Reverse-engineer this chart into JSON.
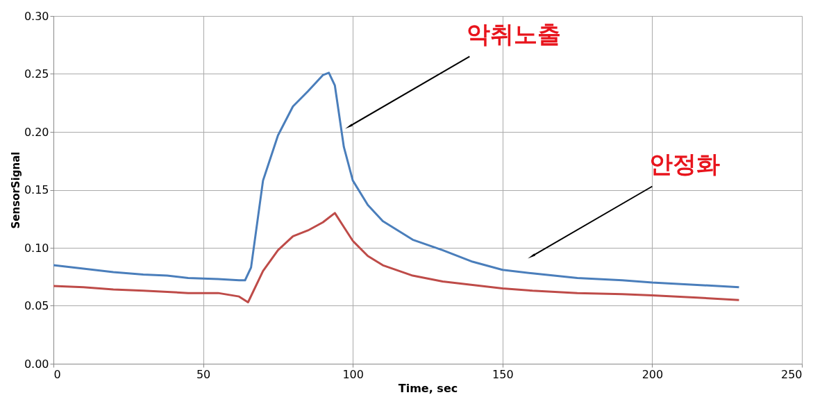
{
  "chart_data": {
    "type": "line",
    "xlabel": "Time, sec",
    "ylabel": "SensorSignal",
    "xlim": [
      0,
      250
    ],
    "xticks": [
      0,
      50,
      100,
      150,
      200,
      250
    ],
    "ylim": [
      0,
      0.3
    ],
    "yticks": [
      {
        "value": 0,
        "label": "0.00"
      },
      0.05,
      {
        "value": 0.1,
        "label": "0.10"
      },
      0.15,
      {
        "value": 0.2,
        "label": "0.20"
      },
      0.25,
      {
        "value": 0.3,
        "label": "0.30"
      }
    ],
    "grid": true,
    "marker": "none",
    "line_style": "solid",
    "series": [
      {
        "color": "#4a7ebb",
        "x": [
          0,
          10,
          20,
          30,
          38,
          45,
          55,
          62,
          64,
          66,
          70,
          75,
          80,
          85,
          90,
          92,
          94,
          97,
          100,
          105,
          110,
          120,
          130,
          140,
          150,
          160,
          175,
          190,
          200,
          215,
          229
        ],
        "values": [
          0.085,
          0.082,
          0.079,
          0.077,
          0.076,
          0.074,
          0.073,
          0.072,
          0.072,
          0.083,
          0.158,
          0.197,
          0.222,
          0.235,
          0.249,
          0.251,
          0.24,
          0.187,
          0.158,
          0.137,
          0.123,
          0.107,
          0.098,
          0.088,
          0.081,
          0.078,
          0.074,
          0.072,
          0.07,
          0.068,
          0.066
        ]
      },
      {
        "color": "#be4b48",
        "x": [
          0,
          10,
          20,
          30,
          45,
          55,
          62,
          65,
          70,
          75,
          80,
          85,
          90,
          94,
          97,
          100,
          105,
          110,
          120,
          130,
          140,
          150,
          160,
          175,
          190,
          200,
          215,
          229
        ],
        "values": [
          0.067,
          0.066,
          0.064,
          0.063,
          0.061,
          0.061,
          0.058,
          0.053,
          0.08,
          0.098,
          0.11,
          0.115,
          0.122,
          0.13,
          0.118,
          0.106,
          0.093,
          0.085,
          0.076,
          0.071,
          0.068,
          0.065,
          0.063,
          0.061,
          0.06,
          0.059,
          0.057,
          0.055
        ]
      }
    ],
    "annotations": [
      {
        "text": "악취노출",
        "x": 99,
        "y": 0.205
      },
      {
        "text": "안정화",
        "x": 160,
        "y": 0.093
      }
    ]
  }
}
